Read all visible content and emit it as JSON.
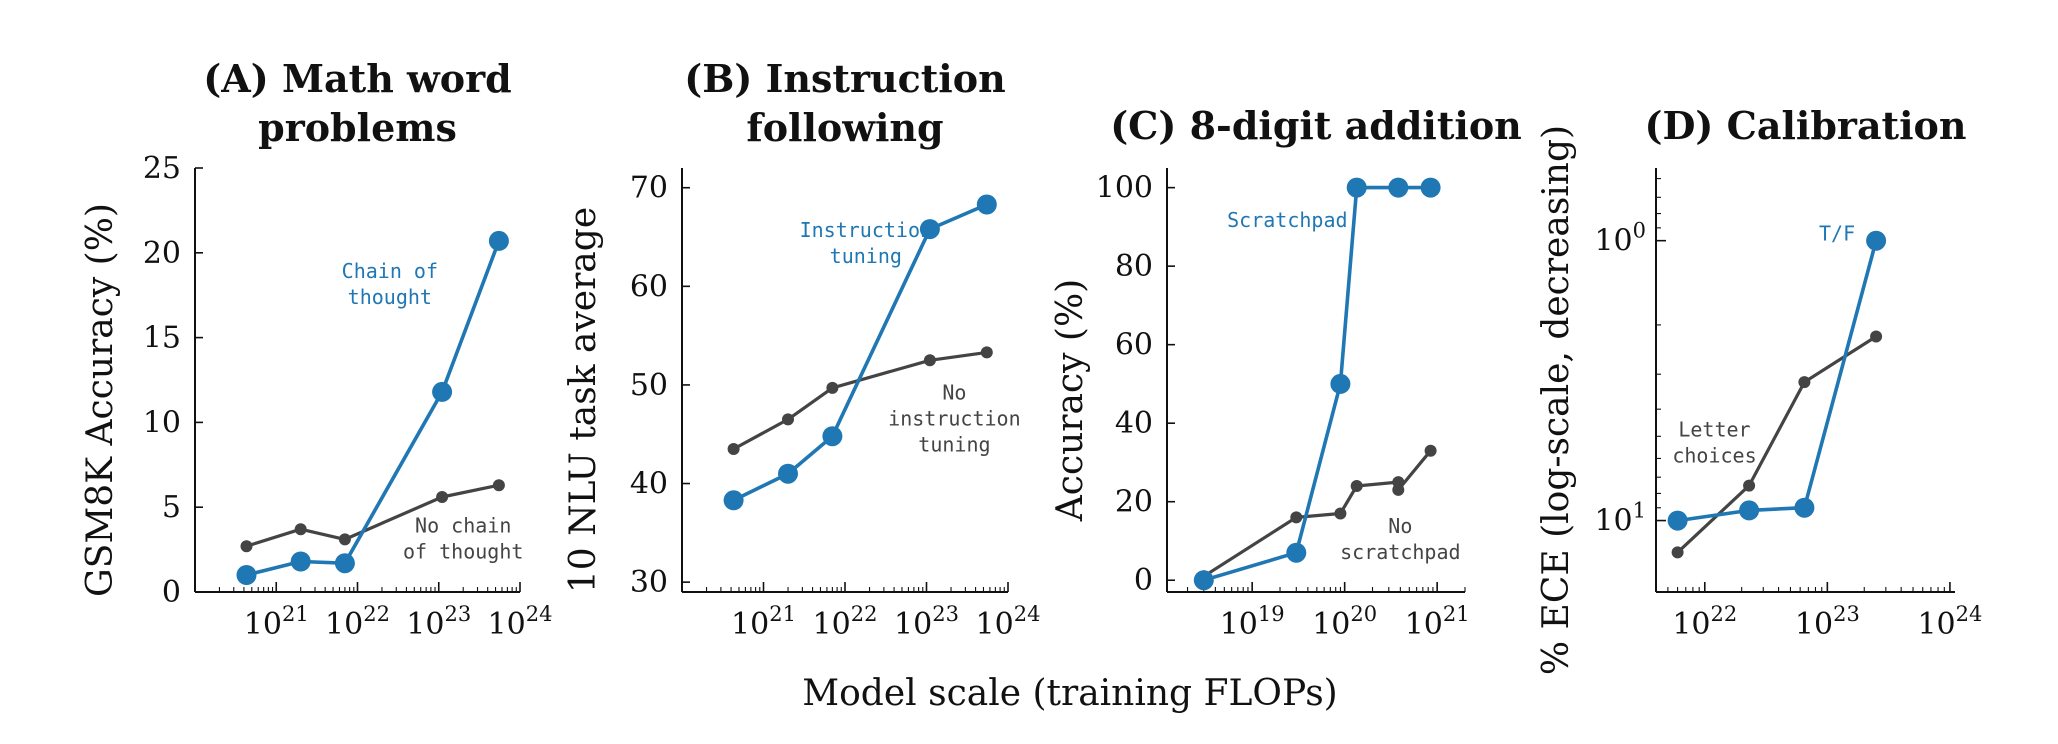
{
  "figure": {
    "xlabel": "Model scale (training FLOPs)"
  },
  "colors": {
    "blue": "#1f77b4",
    "gray": "#444444"
  },
  "chart_data": [
    {
      "id": "A",
      "type": "line",
      "title": [
        "(A) Math word",
        "problems"
      ],
      "ylabel": "GSM8K Accuracy (%)",
      "xscale": "log",
      "xlim": [
        1e+20,
        1e+24
      ],
      "ylim": [
        0,
        25
      ],
      "yticks": [
        0,
        5,
        10,
        15,
        20,
        25
      ],
      "xticks": [
        {
          "value": 1e+21,
          "base": "10",
          "exp": "21"
        },
        {
          "value": 1e+22,
          "base": "10",
          "exp": "22"
        },
        {
          "value": 1e+23,
          "base": "10",
          "exp": "23"
        },
        {
          "value": 1e+24,
          "base": "10",
          "exp": "24"
        }
      ],
      "series": [
        {
          "name": "No chain of thought",
          "color": "#444444",
          "marker": "small",
          "x": [
            4.3e+20,
            2e+21,
            7e+21,
            1.1e+23,
            5.5e+23
          ],
          "y": [
            2.7,
            3.7,
            3.1,
            5.6,
            6.3
          ]
        },
        {
          "name": "Chain of thought",
          "color": "#1f77b4",
          "marker": "large",
          "x": [
            4.3e+20,
            2e+21,
            7e+21,
            1.1e+23,
            5.5e+23
          ],
          "y": [
            1.0,
            1.8,
            1.7,
            11.8,
            20.7
          ]
        }
      ],
      "annotations": [
        {
          "lines": [
            "Chain of",
            "thought"
          ],
          "color": "#1f77b4",
          "x": 2.5e+22,
          "y": 18.5
        },
        {
          "lines": [
            "No chain",
            "of thought"
          ],
          "color": "#444444",
          "x": 2e+23,
          "y": 3.5
        }
      ]
    },
    {
      "id": "B",
      "type": "line",
      "title": [
        "(B) Instruction",
        "following"
      ],
      "ylabel": "10 NLU task average",
      "xscale": "log",
      "xlim": [
        1e+20,
        1e+24
      ],
      "ylim": [
        29,
        72
      ],
      "yticks": [
        30,
        40,
        50,
        60,
        70
      ],
      "xticks": [
        {
          "value": 1e+21,
          "base": "10",
          "exp": "21"
        },
        {
          "value": 1e+22,
          "base": "10",
          "exp": "22"
        },
        {
          "value": 1e+23,
          "base": "10",
          "exp": "23"
        },
        {
          "value": 1e+24,
          "base": "10",
          "exp": "24"
        }
      ],
      "series": [
        {
          "name": "No instruction tuning",
          "color": "#444444",
          "marker": "small",
          "x": [
            4.3e+20,
            2e+21,
            7e+21,
            1.1e+23,
            5.5e+23
          ],
          "y": [
            43.5,
            46.5,
            49.7,
            52.5,
            53.3
          ]
        },
        {
          "name": "Instruction tuning",
          "color": "#1f77b4",
          "marker": "large",
          "x": [
            4.3e+20,
            2e+21,
            7e+21,
            1.1e+23,
            5.5e+23
          ],
          "y": [
            38.3,
            41.0,
            44.8,
            65.8,
            68.3
          ]
        }
      ],
      "annotations": [
        {
          "lines": [
            "Instruction",
            "tuning"
          ],
          "color": "#1f77b4",
          "x": 1.8e+22,
          "y": 65.0
        },
        {
          "lines": [
            "No",
            "instruction",
            "tuning"
          ],
          "color": "#444444",
          "x": 2.2e+23,
          "y": 48.5
        }
      ]
    },
    {
      "id": "C",
      "type": "line",
      "title": [
        "(C) 8-digit addition"
      ],
      "ylabel": "Accuracy (%)",
      "xscale": "log",
      "xlim": [
        1.2e+18,
        2e+21
      ],
      "ylim": [
        -3,
        105
      ],
      "yticks": [
        0,
        20,
        40,
        60,
        80,
        100
      ],
      "xticks": [
        {
          "value": 1e+19,
          "base": "10",
          "exp": "19"
        },
        {
          "value": 1e+20,
          "base": "10",
          "exp": "20"
        },
        {
          "value": 1e+21,
          "base": "10",
          "exp": "21"
        }
      ],
      "series": [
        {
          "name": "No scratchpad",
          "color": "#444444",
          "marker": "small",
          "x": [
            3e+18,
            3e+19,
            9e+19,
            1.35e+20,
            3.8e+20,
            3.8e+20,
            8.5e+20
          ],
          "y": [
            1,
            16,
            17,
            24,
            25,
            23,
            33
          ]
        },
        {
          "name": "Scratchpad",
          "color": "#1f77b4",
          "marker": "large",
          "x": [
            3e+18,
            3e+19,
            9e+19,
            1.35e+20,
            3.8e+20,
            8.5e+20
          ],
          "y": [
            0,
            7,
            50,
            100,
            100,
            100
          ]
        }
      ],
      "annotations": [
        {
          "lines": [
            "Scratchpad"
          ],
          "color": "#1f77b4",
          "x": 2.4e+19,
          "y": 90
        },
        {
          "lines": [
            "No",
            "scratchpad"
          ],
          "color": "#444444",
          "x": 4e+20,
          "y": 12
        }
      ]
    },
    {
      "id": "D",
      "type": "line",
      "title": [
        "(D) Calibration"
      ],
      "ylabel": "% ECE (log-scale, decreasing)",
      "xscale": "log",
      "yscale": "log",
      "yreversed": true,
      "xlim": [
        4e+21,
        1.1e+24
      ],
      "ylim": [
        0.55,
        18
      ],
      "yticks": [
        {
          "value": 1,
          "base": "10",
          "exp": "0"
        },
        {
          "value": 10,
          "base": "10",
          "exp": "1"
        }
      ],
      "xticks": [
        {
          "value": 1e+22,
          "base": "10",
          "exp": "22"
        },
        {
          "value": 1e+23,
          "base": "10",
          "exp": "23"
        },
        {
          "value": 1e+24,
          "base": "10",
          "exp": "24"
        }
      ],
      "series": [
        {
          "name": "Letter choices",
          "color": "#444444",
          "marker": "small",
          "x": [
            6e+21,
            2.3e+22,
            6.5e+22,
            2.5e+23
          ],
          "y": [
            13.0,
            7.5,
            3.2,
            2.2
          ]
        },
        {
          "name": "T/F",
          "color": "#1f77b4",
          "marker": "large",
          "x": [
            6e+21,
            2.3e+22,
            6.5e+22,
            2.5e+23
          ],
          "y": [
            10.0,
            9.2,
            9.0,
            1.0
          ]
        }
      ],
      "annotations": [
        {
          "lines": [
            "T/F"
          ],
          "color": "#1f77b4",
          "x": 1.2e+23,
          "y": 1.0
        },
        {
          "lines": [
            "Letter",
            "choices"
          ],
          "color": "#444444",
          "x": 1.2e+22,
          "y": 5.0
        }
      ]
    }
  ]
}
